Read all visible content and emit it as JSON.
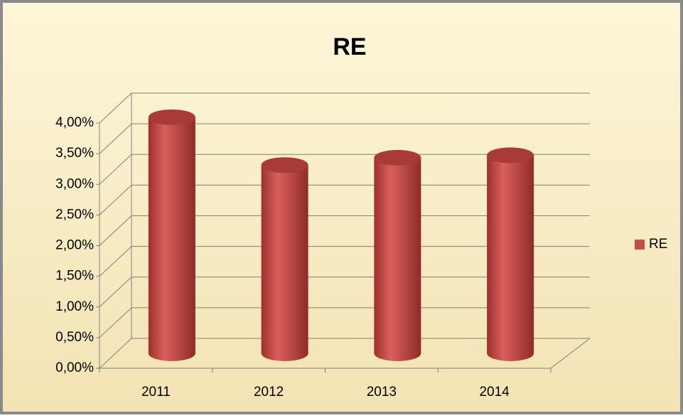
{
  "chart_data": {
    "type": "bar",
    "title": "RE",
    "categories": [
      "2011",
      "2012",
      "2013",
      "2014"
    ],
    "series": [
      {
        "name": "RE",
        "color": "#c0504d",
        "values": [
          3.85,
          3.07,
          3.19,
          3.23
        ]
      }
    ],
    "ylim": [
      0,
      4
    ],
    "yticks": [
      {
        "value": 0,
        "label": "0,00%"
      },
      {
        "value": 0.5,
        "label": "0,50%"
      },
      {
        "value": 1,
        "label": "1,00%"
      },
      {
        "value": 1.5,
        "label": "1,50%"
      },
      {
        "value": 2,
        "label": "2,00%"
      },
      {
        "value": 2.5,
        "label": "2,50%"
      },
      {
        "value": 3,
        "label": "3,00%"
      },
      {
        "value": 3.5,
        "label": "3,50%"
      },
      {
        "value": 4,
        "label": "4,00%"
      }
    ],
    "grid": true,
    "legend": "right"
  }
}
